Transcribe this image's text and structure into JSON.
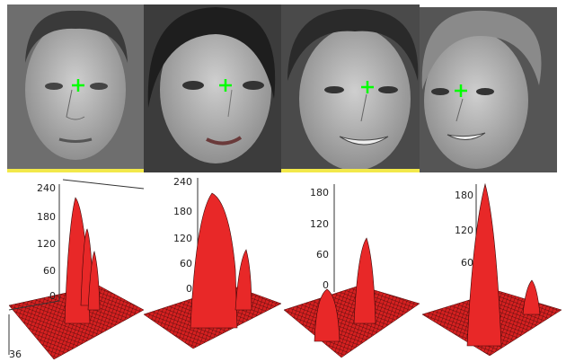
{
  "panels": [
    {
      "ticks": [
        "240",
        "180",
        "120",
        "60",
        "0"
      ],
      "corner": "36"
    },
    {
      "ticks": [
        "240",
        "180",
        "120",
        "60",
        "0"
      ]
    },
    {
      "ticks": [
        "180",
        "120",
        "60",
        "0"
      ]
    },
    {
      "ticks": [
        "180",
        "120",
        "60"
      ]
    }
  ]
}
